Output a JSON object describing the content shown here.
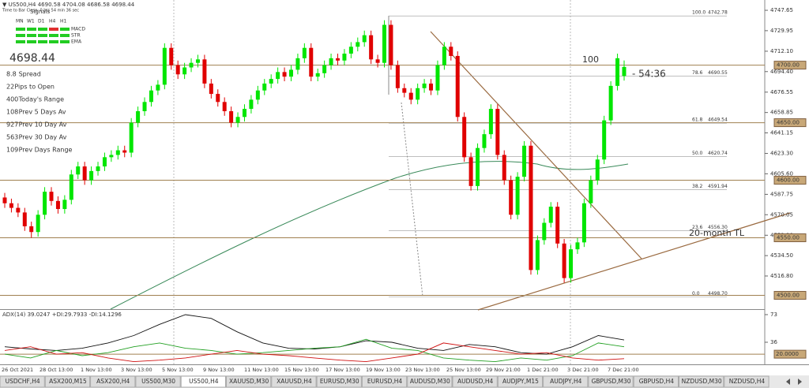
{
  "header": {
    "symbol_line": "▼ US500,H4 4690.58 4704.08 4686.58 4698.44",
    "timer": "Time to Bar Close: 0 hrs 54 min 36 sec"
  },
  "panel": {
    "signals_title": "Signals",
    "timeframes": [
      "MN",
      "W1",
      "D1",
      "H4",
      "H1"
    ],
    "indicators": [
      "MACD",
      "STR",
      "EMA"
    ],
    "price": "4698.44",
    "stats": [
      {
        "value": "8.8",
        "label": "Spread",
        "color": "#e89a00"
      },
      {
        "value": "22",
        "label": "Pips to Open",
        "color": "#22b022"
      },
      {
        "value": "400",
        "label": "Today's Range",
        "color": "#e04000"
      },
      {
        "value": "108",
        "label": "Prev 5 Days Av",
        "color": "#d05080"
      },
      {
        "value": "927",
        "label": "Prev 10 Day Av",
        "color": "#e02020"
      },
      {
        "value": "563",
        "label": "Prev 30 Day Av",
        "color": "#e05000"
      },
      {
        "value": "109",
        "label": "Prev Days Range",
        "color": "#d02060"
      }
    ]
  },
  "chart": {
    "ylim": [
      4488,
      4756.6
    ],
    "yticks": [
      4747.65,
      4729.95,
      {
        "value": 4712.1,
        "label": "4712.10"
      },
      {
        "value": 4694.4,
        "label": "4694.40"
      },
      4676.55,
      4658.85,
      4641.15,
      {
        "value": 4623.3,
        "label": "4623.30"
      },
      {
        "value": 4605.6,
        "label": "4605.60"
      },
      4587.75,
      4570.05,
      {
        "value": 4552.2,
        "label": "4552.20"
      },
      {
        "value": 4534.5,
        "label": "4534.50"
      },
      {
        "value": 4516.8,
        "label": "4516.80"
      }
    ],
    "levels": [
      {
        "value": 4700,
        "label": "4700.00"
      },
      {
        "value": 4650,
        "label": "4650.00"
      },
      {
        "value": 4600,
        "label": "4600.00"
      },
      {
        "value": 4550,
        "label": "4550.00"
      },
      {
        "value": 4500,
        "label": "4500.00"
      }
    ],
    "fib": [
      {
        "level": "100.0",
        "price": "4742.78"
      },
      {
        "level": "78.6",
        "price": "4690.55"
      },
      {
        "level": "61.8",
        "price": "4649.54"
      },
      {
        "level": "50.0",
        "price": "4620.74"
      },
      {
        "level": "38.2",
        "price": "4591.94"
      },
      {
        "level": "23.6",
        "price": "4556.30"
      },
      {
        "level": "0.0",
        "price": "4498.70"
      }
    ],
    "annotations": {
      "hundred": "100",
      "countdown": "- 54:36",
      "trendline": "20-month TL"
    },
    "up_color": "#00e600",
    "down_color": "#e00000",
    "candles": [
      [
        4585,
        4589,
        4576,
        4580
      ],
      [
        4580,
        4584,
        4572,
        4576
      ],
      [
        4576,
        4580,
        4568,
        4572
      ],
      [
        4572,
        4576,
        4556,
        4560
      ],
      [
        4560,
        4564,
        4550,
        4555
      ],
      [
        4555,
        4574,
        4551,
        4570
      ],
      [
        4570,
        4594,
        4566,
        4590
      ],
      [
        4590,
        4594,
        4578,
        4582
      ],
      [
        4582,
        4586,
        4571,
        4575
      ],
      [
        4575,
        4587,
        4571,
        4583
      ],
      [
        4583,
        4609,
        4579,
        4605
      ],
      [
        4605,
        4616,
        4601,
        4612
      ],
      [
        4612,
        4616,
        4596,
        4600
      ],
      [
        4600,
        4612,
        4596,
        4608
      ],
      [
        4608,
        4616,
        4604,
        4612
      ],
      [
        4612,
        4624,
        4608,
        4620
      ],
      [
        4620,
        4626,
        4616,
        4622
      ],
      [
        4622,
        4630,
        4618,
        4626
      ],
      [
        4626,
        4630,
        4620,
        4624
      ],
      [
        4624,
        4654,
        4620,
        4650
      ],
      [
        4650,
        4664,
        4646,
        4660
      ],
      [
        4660,
        4672,
        4656,
        4668
      ],
      [
        4668,
        4682,
        4664,
        4678
      ],
      [
        4678,
        4687,
        4674,
        4683
      ],
      [
        4683,
        4719,
        4679,
        4715
      ],
      [
        4715,
        4719,
        4696,
        4700
      ],
      [
        4700,
        4704,
        4688,
        4692
      ],
      [
        4692,
        4702,
        4688,
        4698
      ],
      [
        4698,
        4706,
        4694,
        4702
      ],
      [
        4702,
        4709,
        4698,
        4705
      ],
      [
        4705,
        4709,
        4680,
        4684
      ],
      [
        4684,
        4688,
        4671,
        4675
      ],
      [
        4675,
        4679,
        4664,
        4668
      ],
      [
        4668,
        4672,
        4656,
        4660
      ],
      [
        4660,
        4664,
        4646,
        4650
      ],
      [
        4650,
        4659,
        4646,
        4655
      ],
      [
        4655,
        4666,
        4651,
        4662
      ],
      [
        4662,
        4674,
        4658,
        4670
      ],
      [
        4670,
        4682,
        4666,
        4678
      ],
      [
        4678,
        4688,
        4674,
        4684
      ],
      [
        4684,
        4692,
        4680,
        4688
      ],
      [
        4688,
        4698,
        4684,
        4694
      ],
      [
        4694,
        4698,
        4686,
        4690
      ],
      [
        4690,
        4700,
        4686,
        4696
      ],
      [
        4696,
        4710,
        4692,
        4706
      ],
      [
        4706,
        4719,
        4702,
        4715
      ],
      [
        4715,
        4719,
        4686,
        4690
      ],
      [
        4690,
        4697,
        4686,
        4693
      ],
      [
        4693,
        4704,
        4689,
        4700
      ],
      [
        4700,
        4710,
        4696,
        4706
      ],
      [
        4706,
        4710,
        4700,
        4704
      ],
      [
        4704,
        4714,
        4700,
        4710
      ],
      [
        4710,
        4720,
        4706,
        4716
      ],
      [
        4716,
        4724,
        4712,
        4720
      ],
      [
        4720,
        4730,
        4716,
        4726
      ],
      [
        4726,
        4730,
        4701,
        4705
      ],
      [
        4705,
        4709,
        4698,
        4702
      ],
      [
        4702,
        4739,
        4698,
        4735
      ],
      [
        4735,
        4739,
        4696,
        4700
      ],
      [
        4700,
        4704,
        4676,
        4680
      ],
      [
        4680,
        4684,
        4672,
        4676
      ],
      [
        4676,
        4680,
        4666,
        4670
      ],
      [
        4670,
        4684,
        4666,
        4680
      ],
      [
        4680,
        4688,
        4676,
        4684
      ],
      [
        4684,
        4688,
        4674,
        4678
      ],
      [
        4678,
        4704,
        4674,
        4700
      ],
      [
        4700,
        4720,
        4696,
        4716
      ],
      [
        4716,
        4720,
        4704,
        4708
      ],
      [
        4708,
        4712,
        4651,
        4655
      ],
      [
        4655,
        4659,
        4616,
        4620
      ],
      [
        4620,
        4624,
        4591,
        4595
      ],
      [
        4595,
        4632,
        4591,
        4628
      ],
      [
        4628,
        4644,
        4624,
        4640
      ],
      [
        4640,
        4666,
        4636,
        4662
      ],
      [
        4662,
        4666,
        4618,
        4622
      ],
      [
        4622,
        4626,
        4596,
        4600
      ],
      [
        4600,
        4604,
        4566,
        4570
      ],
      [
        4570,
        4607,
        4566,
        4603
      ],
      [
        4603,
        4634,
        4599,
        4630
      ],
      [
        4630,
        4634,
        4518,
        4522
      ],
      [
        4522,
        4552,
        4518,
        4548
      ],
      [
        4548,
        4567,
        4544,
        4563
      ],
      [
        4563,
        4581,
        4559,
        4577
      ],
      [
        4577,
        4581,
        4541,
        4545
      ],
      [
        4545,
        4549,
        4511,
        4515
      ],
      [
        4515,
        4544,
        4511,
        4540
      ],
      [
        4540,
        4550,
        4536,
        4546
      ],
      [
        4546,
        4584,
        4542,
        4580
      ],
      [
        4580,
        4604,
        4576,
        4600
      ],
      [
        4600,
        4622,
        4596,
        4618
      ],
      [
        4618,
        4656,
        4614,
        4652
      ],
      [
        4652,
        4686,
        4648,
        4682
      ],
      [
        4682,
        4710,
        4678,
        4706
      ],
      [
        4690.58,
        4704.08,
        4686.58,
        4698.44
      ]
    ]
  },
  "adx": {
    "title": "ADX(14) 39.0247 +DI:29.7933 -DI:14.1296",
    "ylim": [
      6.4,
      79.3
    ],
    "yticks": [
      73,
      36
    ],
    "level": {
      "value": 20,
      "label": "20.0000"
    },
    "series": [
      {
        "color": "#111111",
        "values": [
          30,
          27,
          25,
          28,
          35,
          45,
          60,
          73,
          68,
          50,
          35,
          28,
          27,
          30,
          38,
          36,
          28,
          25,
          33,
          30,
          22,
          20,
          30,
          45,
          39
        ]
      },
      {
        "color": "#22a022",
        "values": [
          20,
          15,
          25,
          18,
          22,
          30,
          35,
          28,
          25,
          20,
          22,
          25,
          28,
          30,
          40,
          28,
          25,
          15,
          12,
          10,
          15,
          12,
          18,
          35,
          30
        ]
      },
      {
        "color": "#d01010",
        "values": [
          25,
          30,
          20,
          22,
          15,
          10,
          12,
          15,
          20,
          25,
          20,
          18,
          15,
          12,
          10,
          15,
          20,
          35,
          30,
          25,
          20,
          22,
          15,
          12,
          14
        ]
      }
    ]
  },
  "dates": [
    "26 Oct 2021",
    "28 Oct 13:00",
    "1 Nov 13:00",
    "3 Nov 13:00",
    "5 Nov 13:00",
    "9 Nov 13:00",
    "11 Nov 13:00",
    "15 Nov 13:00",
    "17 Nov 13:00",
    "19 Nov 13:00",
    "23 Nov 13:00",
    "25 Nov 13:00",
    "29 Nov 21:00",
    "1 Dec 21:00",
    "3 Dec 21:00",
    "7 Dec 21:00"
  ],
  "tabs": [
    "USDCHF,H4",
    "ASX200,M15",
    "ASX200,H4",
    "US500,M30",
    "US500,H4",
    "XAUUSD,M30",
    "XAUUSD,H4",
    "EURUSD,M30",
    "EURUSD,H4",
    "AUDUSD,M30",
    "AUDUSD,H4",
    "AUDJPY,M15",
    "AUDJPY,H4",
    "GBPUSD,M30",
    "GBPUSD,H4",
    "NZDUSD,M30",
    "NZDUSD,H4"
  ],
  "active_tab": 4
}
